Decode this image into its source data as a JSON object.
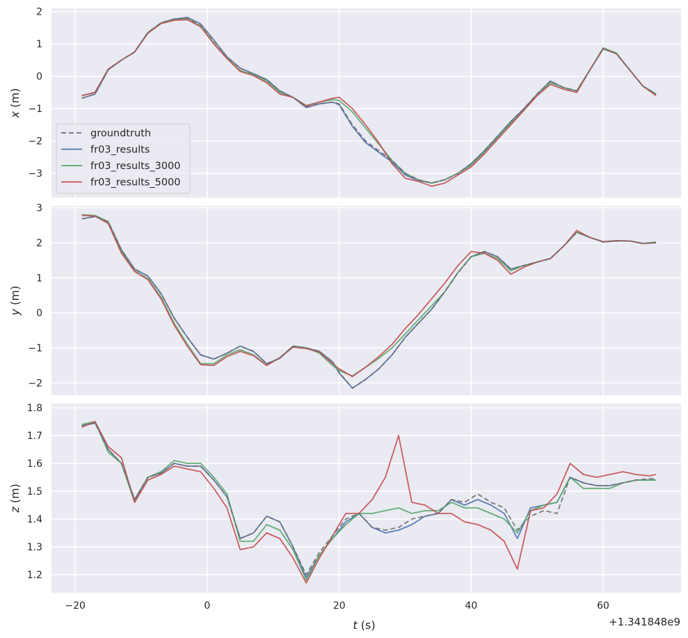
{
  "chart_data": {
    "type": "line",
    "x_offset_label": "+1.341848e9",
    "xlabel_var": "t",
    "xlabel_unit": " (s)",
    "xlim": [
      -23.6,
      71.8
    ],
    "xticks": [
      -20,
      0,
      20,
      40,
      60
    ],
    "series_styles": [
      {
        "name": "groundtruth",
        "color": "#6e6e6e",
        "dash": "7,4"
      },
      {
        "name": "fr03_results",
        "color": "#4c72b0",
        "dash": ""
      },
      {
        "name": "fr03_results_3000",
        "color": "#55a868",
        "dash": ""
      },
      {
        "name": "fr03_results_5000",
        "color": "#c44e52",
        "dash": ""
      }
    ],
    "legend": {
      "placement": "lower-left",
      "panel": 0
    },
    "grid": true,
    "panels": [
      {
        "ylabel_var": "x",
        "ylabel_unit": " (m)",
        "ylim": [
          -3.75,
          2.1
        ],
        "yticks": [
          -3,
          -2,
          -1,
          0,
          1,
          2
        ],
        "x": [
          -19,
          -17,
          -15,
          -13,
          -11,
          -9,
          -7,
          -5,
          -3,
          -1,
          1,
          3,
          5,
          7,
          9,
          11,
          13,
          15,
          17,
          19,
          20,
          22,
          24,
          26,
          28,
          30,
          32,
          34,
          36,
          38,
          40,
          42,
          44,
          46,
          48,
          50,
          52,
          54,
          56,
          58,
          60,
          62,
          64,
          66,
          68
        ],
        "series": [
          {
            "name": "groundtruth",
            "values": [
              -0.68,
              -0.55,
              0.2,
              0.5,
              0.75,
              1.35,
              1.65,
              1.77,
              1.8,
              1.6,
              1.1,
              0.6,
              0.25,
              0.08,
              -0.1,
              -0.45,
              -0.65,
              -0.95,
              -0.85,
              -0.8,
              -0.85,
              -1.5,
              -2.0,
              -2.3,
              -2.6,
              -3.0,
              -3.2,
              -3.3,
              -3.2,
              -3.0,
              -2.7,
              -2.3,
              -1.85,
              -1.4,
              -1.0,
              -0.55,
              -0.15,
              -0.35,
              -0.45,
              0.2,
              0.85,
              0.7,
              0.2,
              -0.3,
              -0.55
            ]
          },
          {
            "name": "fr03_results",
            "values": [
              -0.68,
              -0.55,
              0.2,
              0.5,
              0.75,
              1.35,
              1.65,
              1.77,
              1.82,
              1.62,
              1.12,
              0.6,
              0.25,
              0.08,
              -0.1,
              -0.45,
              -0.65,
              -0.97,
              -0.85,
              -0.8,
              -0.88,
              -1.55,
              -2.05,
              -2.35,
              -2.65,
              -3.05,
              -3.22,
              -3.3,
              -3.2,
              -3.0,
              -2.7,
              -2.3,
              -1.85,
              -1.4,
              -1.0,
              -0.55,
              -0.15,
              -0.35,
              -0.45,
              0.2,
              0.85,
              0.7,
              0.2,
              -0.3,
              -0.55
            ]
          },
          {
            "name": "fr03_results_3000",
            "values": [
              -0.6,
              -0.5,
              0.22,
              0.5,
              0.75,
              1.35,
              1.65,
              1.76,
              1.77,
              1.55,
              1.02,
              0.55,
              0.18,
              0.05,
              -0.15,
              -0.5,
              -0.65,
              -0.9,
              -0.8,
              -0.72,
              -0.75,
              -1.1,
              -1.6,
              -2.1,
              -2.6,
              -3.0,
              -3.2,
              -3.3,
              -3.2,
              -3.0,
              -2.75,
              -2.35,
              -1.9,
              -1.45,
              -1.05,
              -0.55,
              -0.2,
              -0.35,
              -0.45,
              0.2,
              0.88,
              0.72,
              0.2,
              -0.3,
              -0.55
            ]
          },
          {
            "name": "fr03_results_5000",
            "values": [
              -0.6,
              -0.5,
              0.22,
              0.5,
              0.75,
              1.33,
              1.63,
              1.73,
              1.75,
              1.53,
              1.0,
              0.55,
              0.15,
              0.02,
              -0.2,
              -0.55,
              -0.65,
              -0.92,
              -0.8,
              -0.68,
              -0.65,
              -1.0,
              -1.5,
              -2.05,
              -2.7,
              -3.15,
              -3.25,
              -3.4,
              -3.3,
              -3.05,
              -2.8,
              -2.4,
              -1.95,
              -1.5,
              -1.05,
              -0.6,
              -0.25,
              -0.4,
              -0.5,
              0.2,
              0.85,
              0.7,
              0.2,
              -0.3,
              -0.6
            ]
          }
        ]
      },
      {
        "ylabel_var": "y",
        "ylabel_unit": " (m)",
        "ylim": [
          -2.35,
          3.05
        ],
        "yticks": [
          -2,
          -1,
          0,
          1,
          2,
          3
        ],
        "x": [
          -19,
          -17,
          -15,
          -13,
          -11,
          -9,
          -7,
          -5,
          -3,
          -1,
          1,
          3,
          5,
          7,
          9,
          11,
          13,
          15,
          17,
          19,
          20,
          22,
          24,
          26,
          28,
          30,
          32,
          34,
          36,
          38,
          40,
          42,
          44,
          46,
          48,
          50,
          52,
          54,
          56,
          58,
          60,
          62,
          64,
          66,
          68
        ],
        "series": [
          {
            "name": "groundtruth",
            "values": [
              2.68,
              2.75,
              2.6,
              1.8,
              1.25,
              1.05,
              0.55,
              -0.15,
              -0.7,
              -1.2,
              -1.32,
              -1.15,
              -0.95,
              -1.1,
              -1.45,
              -1.3,
              -0.95,
              -1.0,
              -1.1,
              -1.4,
              -1.7,
              -2.15,
              -1.9,
              -1.6,
              -1.2,
              -0.7,
              -0.3,
              0.1,
              0.6,
              1.15,
              1.6,
              1.75,
              1.6,
              1.25,
              1.35,
              1.45,
              1.55,
              1.9,
              2.3,
              2.15,
              2.02,
              2.05,
              2.05,
              1.98,
              2.0
            ]
          },
          {
            "name": "fr03_results",
            "values": [
              2.68,
              2.75,
              2.6,
              1.8,
              1.25,
              1.05,
              0.55,
              -0.15,
              -0.7,
              -1.2,
              -1.32,
              -1.15,
              -0.95,
              -1.1,
              -1.45,
              -1.3,
              -0.95,
              -1.0,
              -1.1,
              -1.4,
              -1.72,
              -2.15,
              -1.9,
              -1.6,
              -1.2,
              -0.7,
              -0.3,
              0.1,
              0.6,
              1.15,
              1.6,
              1.75,
              1.6,
              1.25,
              1.35,
              1.45,
              1.55,
              1.9,
              2.3,
              2.15,
              2.02,
              2.05,
              2.05,
              1.98,
              2.0
            ]
          },
          {
            "name": "fr03_results_3000",
            "values": [
              2.8,
              2.78,
              2.6,
              1.75,
              1.2,
              0.98,
              0.45,
              -0.3,
              -0.9,
              -1.45,
              -1.45,
              -1.2,
              -1.05,
              -1.2,
              -1.5,
              -1.28,
              -0.95,
              -1.0,
              -1.15,
              -1.5,
              -1.65,
              -1.8,
              -1.55,
              -1.3,
              -1.0,
              -0.6,
              -0.2,
              0.2,
              0.6,
              1.15,
              1.6,
              1.7,
              1.55,
              1.2,
              1.35,
              1.45,
              1.55,
              1.9,
              2.3,
              2.15,
              2.03,
              2.06,
              2.05,
              1.98,
              2.02
            ]
          },
          {
            "name": "fr03_results_5000",
            "values": [
              2.78,
              2.76,
              2.55,
              1.7,
              1.18,
              0.95,
              0.4,
              -0.35,
              -0.95,
              -1.48,
              -1.5,
              -1.25,
              -1.1,
              -1.22,
              -1.5,
              -1.28,
              -0.98,
              -1.02,
              -1.12,
              -1.45,
              -1.6,
              -1.82,
              -1.55,
              -1.25,
              -0.9,
              -0.45,
              -0.05,
              0.4,
              0.85,
              1.35,
              1.75,
              1.7,
              1.5,
              1.1,
              1.3,
              1.45,
              1.55,
              1.9,
              2.35,
              2.15,
              2.03,
              2.06,
              2.05,
              1.98,
              2.0
            ]
          }
        ]
      },
      {
        "ylabel_var": "z",
        "ylabel_unit": " (m)",
        "ylim": [
          1.135,
          1.815
        ],
        "yticks": [
          1.2,
          1.3,
          1.4,
          1.5,
          1.6,
          1.7,
          1.8
        ],
        "x": [
          -19,
          -17,
          -15,
          -13,
          -11,
          -9,
          -7,
          -5,
          -3,
          -1,
          1,
          3,
          5,
          7,
          9,
          11,
          13,
          15,
          17,
          19,
          21,
          23,
          25,
          27,
          29,
          31,
          33,
          35,
          37,
          39,
          41,
          43,
          45,
          47,
          49,
          51,
          53,
          55,
          57,
          59,
          61,
          63,
          65,
          67,
          68
        ],
        "series": [
          {
            "name": "groundtruth",
            "values": [
              1.735,
              1.745,
              1.65,
              1.6,
              1.47,
              1.55,
              1.565,
              1.6,
              1.59,
              1.59,
              1.54,
              1.48,
              1.33,
              1.35,
              1.41,
              1.39,
              1.3,
              1.2,
              1.28,
              1.34,
              1.4,
              1.42,
              1.37,
              1.36,
              1.37,
              1.4,
              1.41,
              1.42,
              1.47,
              1.46,
              1.49,
              1.46,
              1.44,
              1.36,
              1.41,
              1.43,
              1.42,
              1.55,
              1.53,
              1.52,
              1.52,
              1.53,
              1.54,
              1.545,
              1.545
            ]
          },
          {
            "name": "fr03_results",
            "values": [
              1.735,
              1.745,
              1.65,
              1.6,
              1.47,
              1.55,
              1.565,
              1.6,
              1.59,
              1.59,
              1.54,
              1.48,
              1.33,
              1.35,
              1.41,
              1.39,
              1.3,
              1.19,
              1.27,
              1.33,
              1.39,
              1.42,
              1.37,
              1.35,
              1.36,
              1.38,
              1.41,
              1.42,
              1.47,
              1.45,
              1.47,
              1.45,
              1.42,
              1.33,
              1.44,
              1.45,
              1.46,
              1.55,
              1.53,
              1.52,
              1.52,
              1.53,
              1.54,
              1.54,
              1.54
            ]
          },
          {
            "name": "fr03_results_3000",
            "values": [
              1.74,
              1.75,
              1.64,
              1.6,
              1.46,
              1.55,
              1.57,
              1.61,
              1.6,
              1.6,
              1.55,
              1.49,
              1.32,
              1.32,
              1.38,
              1.36,
              1.29,
              1.18,
              1.27,
              1.33,
              1.38,
              1.42,
              1.42,
              1.43,
              1.44,
              1.42,
              1.43,
              1.43,
              1.46,
              1.44,
              1.44,
              1.42,
              1.4,
              1.35,
              1.43,
              1.45,
              1.46,
              1.55,
              1.51,
              1.51,
              1.51,
              1.53,
              1.54,
              1.54,
              1.54
            ]
          },
          {
            "name": "fr03_results_5000",
            "values": [
              1.73,
              1.75,
              1.66,
              1.62,
              1.46,
              1.54,
              1.56,
              1.59,
              1.58,
              1.57,
              1.51,
              1.44,
              1.29,
              1.3,
              1.35,
              1.33,
              1.26,
              1.17,
              1.26,
              1.34,
              1.42,
              1.42,
              1.47,
              1.55,
              1.7,
              1.46,
              1.45,
              1.42,
              1.42,
              1.39,
              1.38,
              1.36,
              1.32,
              1.22,
              1.43,
              1.44,
              1.49,
              1.6,
              1.56,
              1.55,
              1.56,
              1.57,
              1.56,
              1.555,
              1.56
            ]
          }
        ]
      }
    ]
  }
}
